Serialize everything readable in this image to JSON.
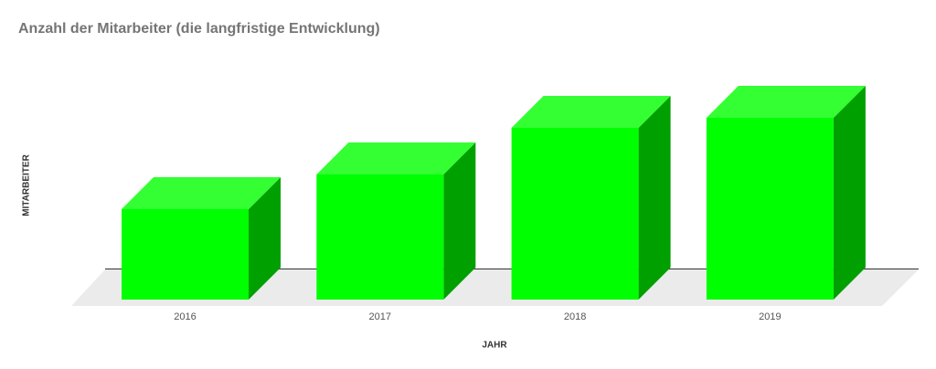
{
  "chart_data": {
    "type": "bar3d",
    "title": "Anzahl der Mitarbeiter (die langfristige Entwicklung)",
    "x_label": "JAHR",
    "y_label": "MITARBEITER",
    "categories": [
      "2016",
      "2017",
      "2018",
      "2019"
    ],
    "values": [
      99,
      137,
      188,
      199
    ],
    "color": "#00ff00"
  }
}
